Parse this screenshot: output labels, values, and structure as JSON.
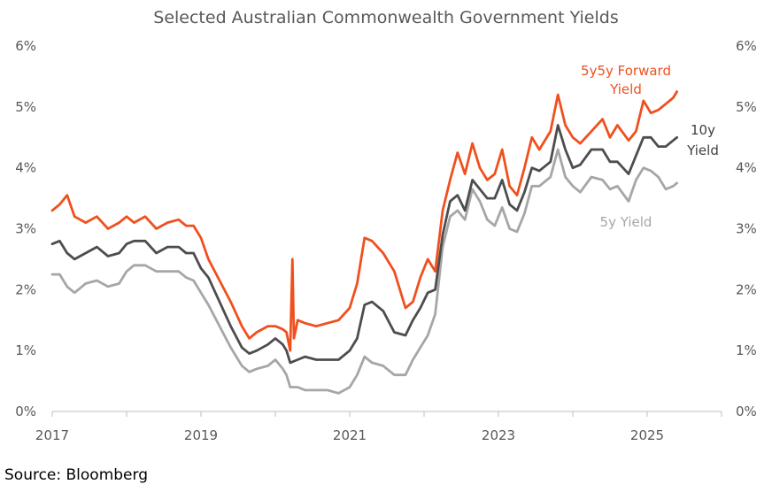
{
  "chart_data": {
    "type": "line",
    "title": "Selected Australian Commonwealth Government Yields",
    "xlabel": "",
    "ylabel": "",
    "x_ticks": [
      "2017",
      "2019",
      "2021",
      "2023",
      "2025"
    ],
    "y_ticks": [
      "0%",
      "1%",
      "2%",
      "3%",
      "4%",
      "5%",
      "6%"
    ],
    "xlim": [
      2017.0,
      2026.0
    ],
    "ylim": [
      0,
      6
    ],
    "grid": false,
    "annotations": {
      "fwd_line1": "5y5y Forward",
      "fwd_line2": "Yield",
      "ten_line1": "10y",
      "ten_line2": "Yield",
      "five": "5y Yield"
    },
    "series": [
      {
        "name": "5y5y Forward Yield",
        "color": "#F0501E",
        "x": [
          2017.0,
          2017.1,
          2017.2,
          2017.3,
          2017.45,
          2017.6,
          2017.75,
          2017.9,
          2018.0,
          2018.1,
          2018.25,
          2018.4,
          2018.55,
          2018.7,
          2018.8,
          2018.9,
          2019.0,
          2019.1,
          2019.25,
          2019.4,
          2019.55,
          2019.65,
          2019.75,
          2019.9,
          2020.0,
          2020.1,
          2020.15,
          2020.2,
          2020.23,
          2020.25,
          2020.3,
          2020.4,
          2020.55,
          2020.7,
          2020.85,
          2021.0,
          2021.1,
          2021.2,
          2021.3,
          2021.45,
          2021.6,
          2021.75,
          2021.85,
          2021.95,
          2022.05,
          2022.15,
          2022.25,
          2022.35,
          2022.45,
          2022.55,
          2022.65,
          2022.75,
          2022.85,
          2022.95,
          2023.05,
          2023.15,
          2023.25,
          2023.35,
          2023.45,
          2023.55,
          2023.7,
          2023.8,
          2023.9,
          2024.0,
          2024.1,
          2024.25,
          2024.4,
          2024.5,
          2024.6,
          2024.75,
          2024.85,
          2024.95,
          2025.05,
          2025.15,
          2025.25,
          2025.35,
          2025.4
        ],
        "values": [
          3.3,
          3.4,
          3.55,
          3.2,
          3.1,
          3.2,
          3.0,
          3.1,
          3.2,
          3.1,
          3.2,
          3.0,
          3.1,
          3.15,
          3.05,
          3.05,
          2.85,
          2.5,
          2.15,
          1.8,
          1.4,
          1.2,
          1.3,
          1.4,
          1.4,
          1.35,
          1.3,
          1.0,
          2.5,
          1.2,
          1.5,
          1.45,
          1.4,
          1.45,
          1.5,
          1.7,
          2.1,
          2.85,
          2.8,
          2.6,
          2.3,
          1.7,
          1.8,
          2.2,
          2.5,
          2.3,
          3.3,
          3.8,
          4.25,
          3.9,
          4.4,
          4.0,
          3.8,
          3.9,
          4.3,
          3.7,
          3.55,
          4.0,
          4.5,
          4.3,
          4.6,
          5.2,
          4.7,
          4.5,
          4.4,
          4.6,
          4.8,
          4.5,
          4.7,
          4.45,
          4.6,
          5.1,
          4.9,
          4.95,
          5.05,
          5.15,
          5.25
        ]
      },
      {
        "name": "10y Yield",
        "color": "#4D4D4D",
        "x": [
          2017.0,
          2017.1,
          2017.2,
          2017.3,
          2017.45,
          2017.6,
          2017.75,
          2017.9,
          2018.0,
          2018.1,
          2018.25,
          2018.4,
          2018.55,
          2018.7,
          2018.8,
          2018.9,
          2019.0,
          2019.1,
          2019.25,
          2019.4,
          2019.55,
          2019.65,
          2019.75,
          2019.9,
          2020.0,
          2020.1,
          2020.15,
          2020.2,
          2020.3,
          2020.4,
          2020.55,
          2020.7,
          2020.85,
          2021.0,
          2021.1,
          2021.2,
          2021.3,
          2021.45,
          2021.6,
          2021.75,
          2021.85,
          2021.95,
          2022.05,
          2022.15,
          2022.25,
          2022.35,
          2022.45,
          2022.55,
          2022.65,
          2022.75,
          2022.85,
          2022.95,
          2023.05,
          2023.15,
          2023.25,
          2023.35,
          2023.45,
          2023.55,
          2023.7,
          2023.8,
          2023.9,
          2024.0,
          2024.1,
          2024.25,
          2024.4,
          2024.5,
          2024.6,
          2024.75,
          2024.85,
          2024.95,
          2025.05,
          2025.15,
          2025.25,
          2025.35,
          2025.4
        ],
        "values": [
          2.75,
          2.8,
          2.6,
          2.5,
          2.6,
          2.7,
          2.55,
          2.6,
          2.75,
          2.8,
          2.8,
          2.6,
          2.7,
          2.7,
          2.6,
          2.6,
          2.35,
          2.2,
          1.8,
          1.4,
          1.05,
          0.95,
          1.0,
          1.1,
          1.2,
          1.1,
          1.0,
          0.8,
          0.85,
          0.9,
          0.85,
          0.85,
          0.85,
          1.0,
          1.2,
          1.75,
          1.8,
          1.65,
          1.3,
          1.25,
          1.5,
          1.7,
          1.95,
          2.0,
          2.9,
          3.45,
          3.55,
          3.3,
          3.8,
          3.65,
          3.5,
          3.5,
          3.8,
          3.4,
          3.3,
          3.6,
          4.0,
          3.95,
          4.1,
          4.7,
          4.3,
          4.0,
          4.05,
          4.3,
          4.3,
          4.1,
          4.1,
          3.9,
          4.2,
          4.5,
          4.5,
          4.35,
          4.35,
          4.45,
          4.5
        ]
      },
      {
        "name": "5y Yield",
        "color": "#A6A6A6",
        "x": [
          2017.0,
          2017.1,
          2017.2,
          2017.3,
          2017.45,
          2017.6,
          2017.75,
          2017.9,
          2018.0,
          2018.1,
          2018.25,
          2018.4,
          2018.55,
          2018.7,
          2018.8,
          2018.9,
          2019.0,
          2019.1,
          2019.25,
          2019.4,
          2019.55,
          2019.65,
          2019.75,
          2019.9,
          2020.0,
          2020.1,
          2020.15,
          2020.2,
          2020.3,
          2020.4,
          2020.55,
          2020.7,
          2020.85,
          2021.0,
          2021.1,
          2021.2,
          2021.3,
          2021.45,
          2021.6,
          2021.75,
          2021.85,
          2021.95,
          2022.05,
          2022.15,
          2022.25,
          2022.35,
          2022.45,
          2022.55,
          2022.65,
          2022.75,
          2022.85,
          2022.95,
          2023.05,
          2023.15,
          2023.25,
          2023.35,
          2023.45,
          2023.55,
          2023.7,
          2023.8,
          2023.9,
          2024.0,
          2024.1,
          2024.25,
          2024.4,
          2024.5,
          2024.6,
          2024.75,
          2024.85,
          2024.95,
          2025.05,
          2025.15,
          2025.25,
          2025.35,
          2025.4
        ],
        "values": [
          2.25,
          2.25,
          2.05,
          1.95,
          2.1,
          2.15,
          2.05,
          2.1,
          2.3,
          2.4,
          2.4,
          2.3,
          2.3,
          2.3,
          2.2,
          2.15,
          1.95,
          1.75,
          1.4,
          1.05,
          0.75,
          0.65,
          0.7,
          0.75,
          0.85,
          0.7,
          0.6,
          0.4,
          0.4,
          0.35,
          0.35,
          0.35,
          0.3,
          0.4,
          0.6,
          0.9,
          0.8,
          0.75,
          0.6,
          0.6,
          0.85,
          1.05,
          1.25,
          1.6,
          2.7,
          3.2,
          3.3,
          3.15,
          3.65,
          3.45,
          3.15,
          3.05,
          3.35,
          3.0,
          2.95,
          3.25,
          3.7,
          3.7,
          3.85,
          4.3,
          3.85,
          3.7,
          3.6,
          3.85,
          3.8,
          3.65,
          3.7,
          3.45,
          3.8,
          4.0,
          3.95,
          3.85,
          3.65,
          3.7,
          3.75
        ]
      }
    ]
  },
  "source": "Source: Bloomberg"
}
